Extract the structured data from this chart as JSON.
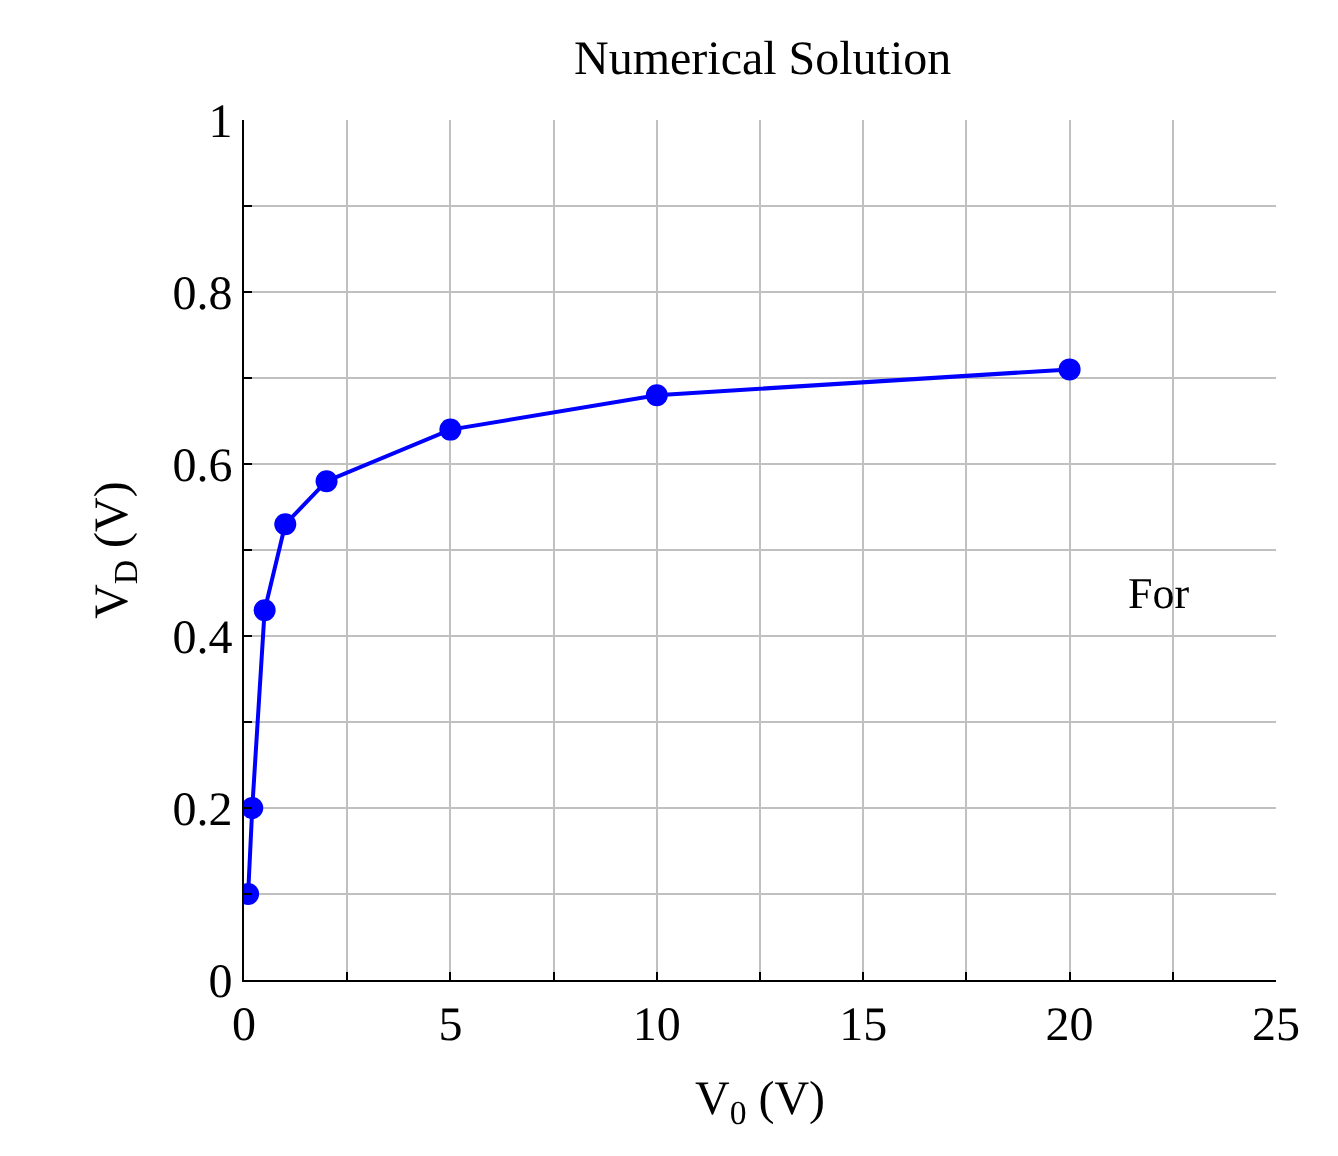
{
  "chart_data": {
    "type": "line",
    "title": "Numerical Solution",
    "xlabel": "V$_{0}$ (V)",
    "ylabel": "V$_{D}$ (V)",
    "x": [
      0.1,
      0.2,
      0.5,
      1,
      2,
      5,
      10,
      20
    ],
    "series": [
      {
        "color": "#0000ff",
        "values": [
          0.1,
          0.2,
          0.43,
          0.53,
          0.58,
          0.64,
          0.68,
          0.71
        ]
      }
    ],
    "xlim": [
      0,
      25
    ],
    "ylim": [
      0,
      1
    ],
    "xticks": [
      0,
      {
        "value": 2.5,
        "label": null
      },
      5,
      {
        "value": 7.5,
        "label": null
      },
      10,
      {
        "value": 12.5,
        "label": null
      },
      15,
      {
        "value": 17.5,
        "label": null
      },
      20,
      {
        "value": 22.5,
        "label": null
      },
      25
    ],
    "yticks": [
      0,
      {
        "value": 0.1,
        "label": null
      },
      0.2,
      {
        "value": 0.3,
        "label": null
      },
      0.4,
      {
        "value": 0.5,
        "label": null
      },
      0.6,
      {
        "value": 0.7,
        "label": null
      },
      0.8,
      {
        "value": 0.9,
        "label": null
      },
      1
    ],
    "grid": true,
    "marker": "circle",
    "line_style": "solid",
    "annotations": [
      "For"
    ]
  }
}
